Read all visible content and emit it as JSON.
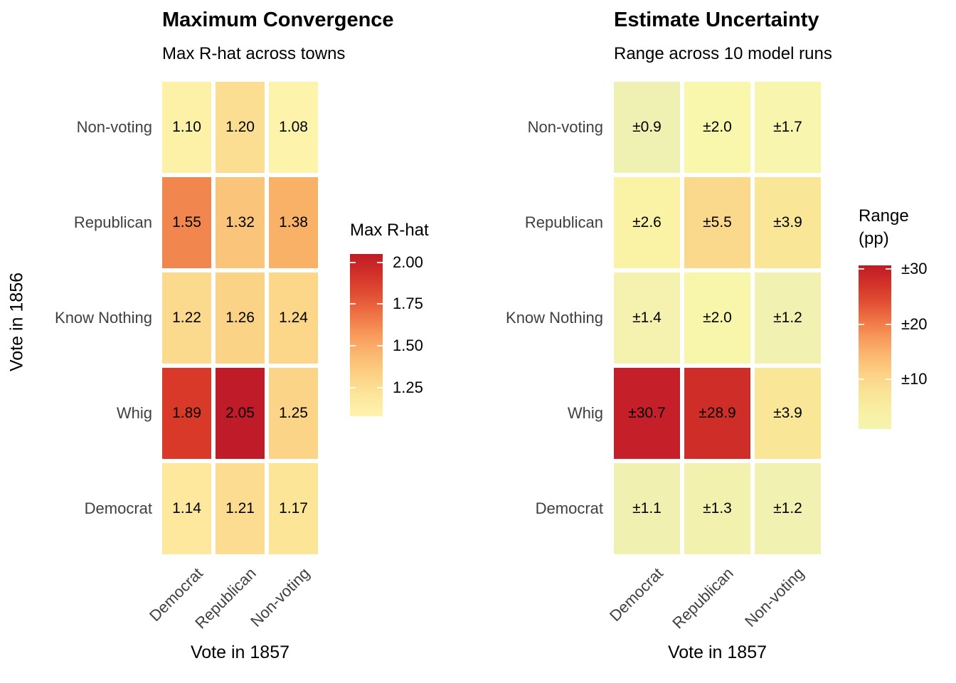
{
  "colors": {
    "background": "#FFFFFF",
    "axis_text": "#404040",
    "title_text": "#000000",
    "cell_text": "#000000",
    "scale_low": "#FEF5B1",
    "scale_high": "#C01B27"
  },
  "chart_data": [
    {
      "type": "heatmap",
      "title": "Maximum Convergence",
      "subtitle": "Max R-hat across towns",
      "xlabel": "Vote in 1857",
      "ylabel": "Vote in 1856",
      "x_categories": [
        "Democrat",
        "Republican",
        "Non-voting"
      ],
      "y_categories": [
        "Non-voting",
        "Republican",
        "Know Nothing",
        "Whig",
        "Democrat"
      ],
      "values": [
        [
          1.1,
          1.2,
          1.08
        ],
        [
          1.55,
          1.32,
          1.38
        ],
        [
          1.22,
          1.26,
          1.24
        ],
        [
          1.89,
          2.05,
          1.25
        ],
        [
          1.14,
          1.21,
          1.17
        ]
      ],
      "cell_labels": [
        [
          "1.10",
          "1.20",
          "1.08"
        ],
        [
          "1.55",
          "1.32",
          "1.38"
        ],
        [
          "1.22",
          "1.26",
          "1.24"
        ],
        [
          "1.89",
          "2.05",
          "1.25"
        ],
        [
          "1.14",
          "1.21",
          "1.17"
        ]
      ],
      "cell_colors": [
        [
          "#FDF1A7",
          "#FCDE92",
          "#FDF3AB"
        ],
        [
          "#F1864F",
          "#FBC47B",
          "#F9B167"
        ],
        [
          "#FCDA8D",
          "#FBD386",
          "#FCD78A"
        ],
        [
          "#D93928",
          "#C01B28",
          "#FBD488"
        ],
        [
          "#FDE89D",
          "#FCDC90",
          "#FDE598"
        ]
      ],
      "legend": {
        "title_lines": [
          "Max R-hat"
        ],
        "domain": [
          1.08,
          2.05
        ],
        "tick_labels": [
          "2.00",
          "1.75",
          "1.50",
          "1.25"
        ],
        "tick_pcts": [
          5.2,
          30.9,
          56.7,
          82.5
        ],
        "gradient": [
          "#C01B27",
          "#D23229",
          "#E14E33",
          "#EF7445",
          "#F89A5B",
          "#FBB971",
          "#FCD286",
          "#FDE69B",
          "#FEF3AE"
        ]
      }
    },
    {
      "type": "heatmap",
      "title": "Estimate Uncertainty",
      "subtitle": "Range across 10 model runs",
      "xlabel": "Vote in 1857",
      "ylabel": "",
      "x_categories": [
        "Democrat",
        "Republican",
        "Non-voting"
      ],
      "y_categories": [
        "Non-voting",
        "Republican",
        "Know Nothing",
        "Whig",
        "Democrat"
      ],
      "values": [
        [
          0.9,
          2.0,
          1.7
        ],
        [
          2.6,
          5.5,
          3.9
        ],
        [
          1.4,
          2.0,
          1.2
        ],
        [
          30.7,
          28.9,
          3.9
        ],
        [
          1.1,
          1.3,
          1.2
        ]
      ],
      "cell_labels": [
        [
          "±0.9",
          "±2.0",
          "±1.7"
        ],
        [
          "±2.6",
          "±5.5",
          "±3.9"
        ],
        [
          "±1.4",
          "±2.0",
          "±1.2"
        ],
        [
          "±30.7",
          "±28.9",
          "±3.9"
        ],
        [
          "±1.1",
          "±1.3",
          "±1.2"
        ]
      ],
      "cell_colors": [
        [
          "#EFF1B3",
          "#F8F7AC",
          "#F7F5AE"
        ],
        [
          "#FAF3A5",
          "#FBD98C",
          "#FAE697"
        ],
        [
          "#F4F2AE",
          "#F8F6AA",
          "#F1F2B1"
        ],
        [
          "#C52029",
          "#CE2D28",
          "#FAE697"
        ],
        [
          "#F0F1B0",
          "#F2F1AE",
          "#F1F2B1"
        ]
      ],
      "legend": {
        "title_lines": [
          "Range",
          "(pp)"
        ],
        "domain": [
          0.9,
          30.7
        ],
        "tick_labels": [
          "±30",
          "±20",
          "±10"
        ],
        "tick_pcts": [
          2.3,
          35.9,
          69.5
        ],
        "gradient": [
          "#C01B27",
          "#D23229",
          "#E14E33",
          "#EF7445",
          "#F89A5B",
          "#FBB971",
          "#FCD286",
          "#FAE396",
          "#F8EFA3",
          "#F4F5AD"
        ]
      }
    }
  ]
}
